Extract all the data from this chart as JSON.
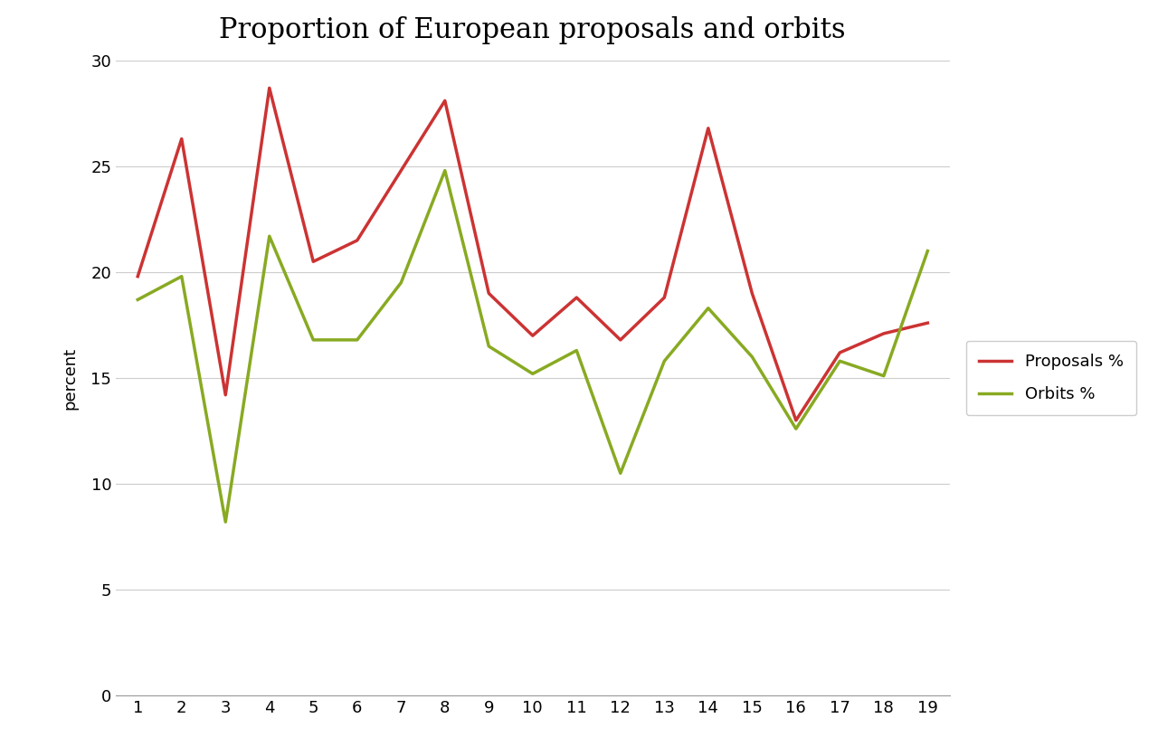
{
  "title": "Proportion of European proposals and orbits",
  "x": [
    1,
    2,
    3,
    4,
    5,
    6,
    7,
    8,
    9,
    10,
    11,
    12,
    13,
    14,
    15,
    16,
    17,
    18,
    19
  ],
  "proposals": [
    19.8,
    26.3,
    14.2,
    28.7,
    20.5,
    21.5,
    24.8,
    28.1,
    19.0,
    17.0,
    18.8,
    16.8,
    18.8,
    26.8,
    19.0,
    13.0,
    16.2,
    17.1,
    17.6
  ],
  "orbits": [
    18.7,
    19.8,
    8.2,
    21.7,
    16.8,
    16.8,
    19.5,
    24.8,
    16.5,
    15.2,
    16.3,
    10.5,
    15.8,
    18.3,
    16.0,
    12.6,
    15.8,
    15.1,
    21.0
  ],
  "proposals_color": "#CC3333",
  "orbits_color": "#88AA22",
  "ylabel": "percent",
  "ylim": [
    0,
    30
  ],
  "yticks": [
    0,
    5,
    10,
    15,
    20,
    25,
    30
  ],
  "xlim": [
    0.5,
    19.5
  ],
  "xticks": [
    1,
    2,
    3,
    4,
    5,
    6,
    7,
    8,
    9,
    10,
    11,
    12,
    13,
    14,
    15,
    16,
    17,
    18,
    19
  ],
  "legend_proposals": "Proposals %",
  "legend_orbits": "Orbits %",
  "background_color": "#FFFFFF",
  "grid_color": "#CCCCCC",
  "title_fontsize": 22,
  "label_fontsize": 13,
  "legend_fontsize": 13,
  "tick_fontsize": 13,
  "line_width": 2.5
}
